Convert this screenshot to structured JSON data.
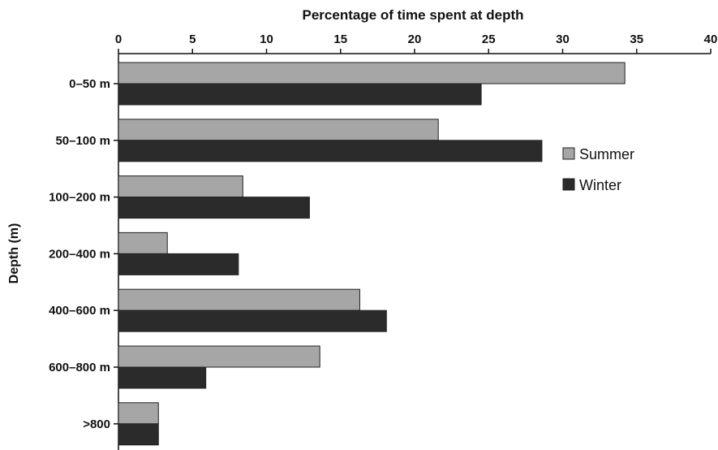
{
  "chart_data": {
    "type": "bar",
    "orientation": "horizontal",
    "title": "Percentage of time spent at depth",
    "xlabel": "Percentage of time spent at depth",
    "ylabel": "Depth (m)",
    "xlim": [
      0,
      40
    ],
    "xticks": [
      "0",
      "5",
      "10",
      "15",
      "20",
      "25",
      "30",
      "35",
      "40"
    ],
    "x_axis_position": "top",
    "categories": [
      "0–50 m",
      "50–100 m",
      "100–200 m",
      "200–400 m",
      "400–600 m",
      "600–800 m",
      ">800"
    ],
    "series": [
      {
        "name": "Summer",
        "color": "#a6a6a6",
        "values": [
          34.2,
          21.6,
          8.4,
          3.3,
          16.3,
          13.6,
          2.7
        ]
      },
      {
        "name": "Winter",
        "color": "#2b2b2b",
        "values": [
          24.5,
          28.6,
          12.9,
          8.1,
          18.1,
          5.9,
          2.7
        ]
      }
    ],
    "grid": false,
    "legend_position": "right"
  }
}
